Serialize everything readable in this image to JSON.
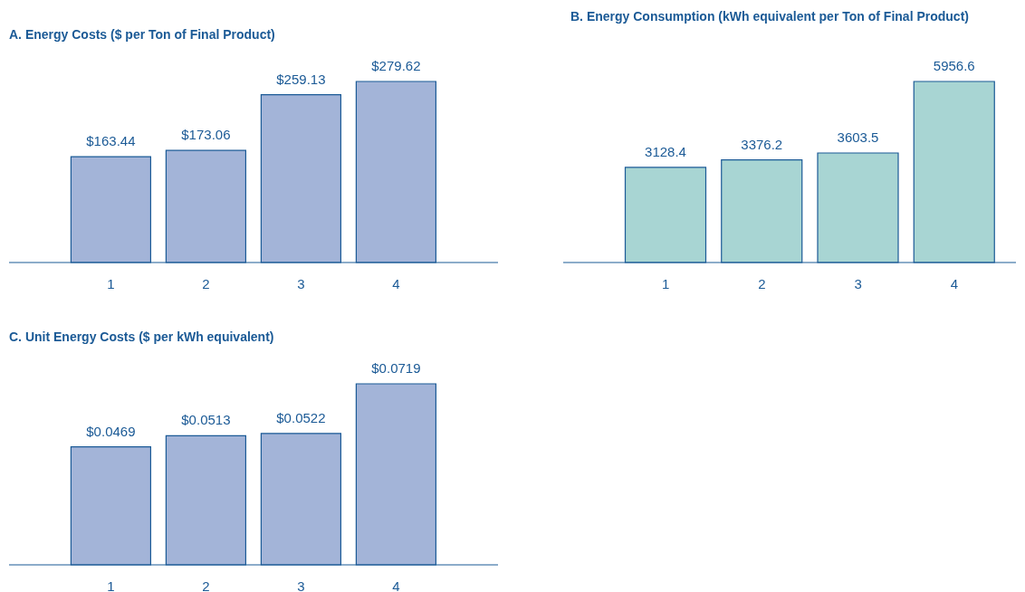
{
  "chart_data": [
    {
      "type": "bar",
      "title": "A. Energy Costs ($ per Ton of Final Product)",
      "categories": [
        "1",
        "2",
        "3",
        "4"
      ],
      "values": [
        163.44,
        173.06,
        259.13,
        279.62
      ],
      "value_labels": [
        "$163.44",
        "$173.06",
        "$259.13",
        "$279.62"
      ],
      "color": "#a3b4d8",
      "tick_labels": "x"
    },
    {
      "type": "bar",
      "title": "B. Energy Consumption (kWh equivalent per Ton of Final Product)",
      "categories": [
        "1",
        "2",
        "3",
        "4"
      ],
      "values": [
        3128.4,
        3376.2,
        3603.5,
        5956.6
      ],
      "value_labels": [
        "3128.4",
        "3376.2",
        "3603.5",
        "5956.6"
      ],
      "color": "#a8d5d3",
      "tick_labels": "x"
    },
    {
      "type": "bar",
      "title": "C. Unit Energy Costs ($ per kWh equivalent)",
      "categories": [
        "1",
        "2",
        "3",
        "4"
      ],
      "values": [
        0.0469,
        0.0513,
        0.0522,
        0.0719
      ],
      "value_labels": [
        "$0.0469",
        "$0.0513",
        "$0.0522",
        "$0.0719"
      ],
      "color": "#a3b4d8",
      "tick_labels": "x"
    }
  ]
}
